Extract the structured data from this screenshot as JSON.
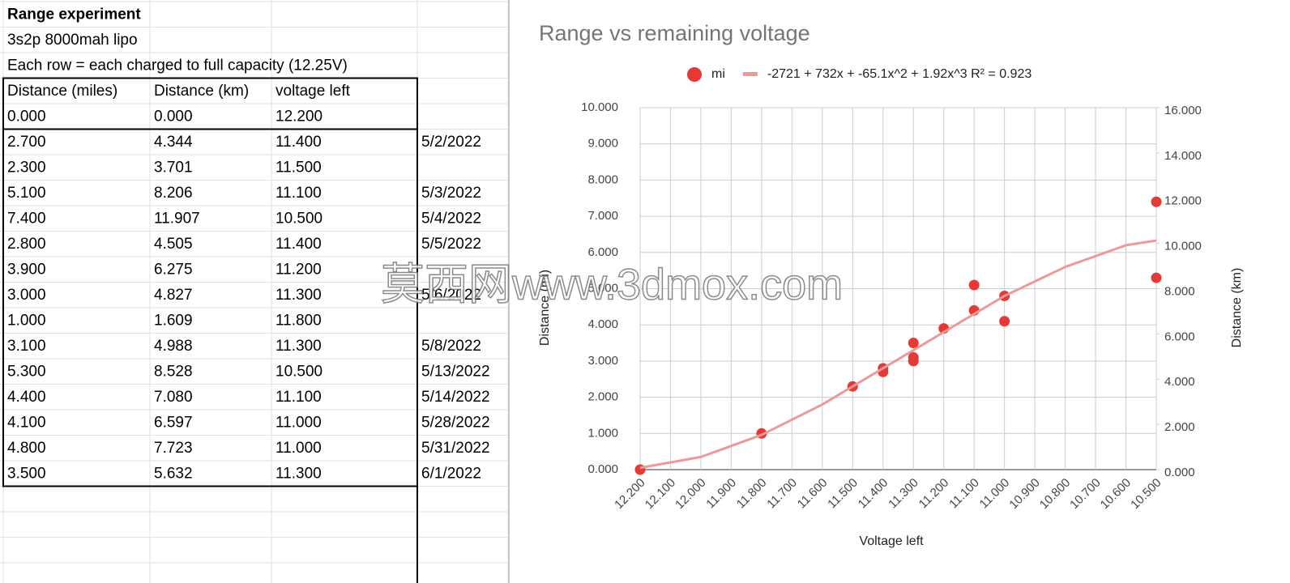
{
  "sheet": {
    "rows": [
      [
        "Range experiment"
      ],
      [
        "3s2p 8000mah lipo"
      ],
      [
        "Each row = each charged to full capacity (12.25V)"
      ],
      [
        "Distance (miles)",
        "Distance (km)",
        "voltage left"
      ],
      [
        "0.000",
        "0.000",
        "12.200"
      ],
      [
        "2.700",
        "4.344",
        "11.400",
        "5/2/2022"
      ],
      [
        "2.300",
        "3.701",
        "11.500"
      ],
      [
        "5.100",
        "8.206",
        "11.100",
        "5/3/2022"
      ],
      [
        "7.400",
        "11.907",
        "10.500",
        "5/4/2022"
      ],
      [
        "2.800",
        "4.505",
        "11.400",
        "5/5/2022"
      ],
      [
        "3.900",
        "6.275",
        "11.200"
      ],
      [
        "3.000",
        "4.827",
        "11.300",
        "5/6/2022"
      ],
      [
        "1.000",
        "1.609",
        "11.800"
      ],
      [
        "3.100",
        "4.988",
        "11.300",
        "5/8/2022"
      ],
      [
        "5.300",
        "8.528",
        "10.500",
        "5/13/2022"
      ],
      [
        "4.400",
        "7.080",
        "11.100",
        "5/14/2022"
      ],
      [
        "4.100",
        "6.597",
        "11.000",
        "5/28/2022"
      ],
      [
        "4.800",
        "7.723",
        "11.000",
        "5/31/2022"
      ],
      [
        "3.500",
        "5.632",
        "11.300",
        "6/1/2022"
      ]
    ]
  },
  "watermark": "莫西网www.3dmox.com",
  "chart_data": {
    "type": "scatter",
    "title": "Range vs remaining voltage",
    "x_label": "Voltage left",
    "y_label": "Distance (mi)",
    "y2_label": "Distance (km)",
    "x": [
      12.2,
      11.4,
      11.5,
      11.1,
      10.5,
      11.4,
      11.2,
      11.3,
      11.8,
      11.3,
      10.5,
      11.1,
      11.0,
      11.0,
      11.3
    ],
    "series": [
      {
        "name": "mi",
        "color": "#e53935",
        "values": [
          0,
          2.7,
          2.3,
          5.1,
          7.4,
          2.8,
          3.9,
          3.0,
          1.0,
          3.1,
          5.3,
          4.4,
          4.1,
          4.8,
          3.5
        ]
      },
      {
        "name": "-2721 + 732x + -65.1x^2 + 1.92x^3 R² = 0.923",
        "type": "trendline",
        "color": "#ec9a98",
        "x": [
          12.2,
          12.0,
          11.8,
          11.6,
          11.4,
          11.2,
          11.0,
          10.8,
          10.6,
          10.5
        ],
        "values": [
          0.05,
          0.35,
          0.96,
          1.8,
          2.8,
          3.8,
          4.8,
          5.6,
          6.2,
          6.33
        ]
      }
    ],
    "xlim": [
      12.2,
      10.5
    ],
    "xticks": [
      {
        "value": 12.2,
        "label": "12.200"
      },
      {
        "value": 12.1,
        "label": "12.100"
      },
      {
        "value": 12.0,
        "label": "12.000"
      },
      {
        "value": 11.9,
        "label": "11.900"
      },
      {
        "value": 11.8,
        "label": "11.800"
      },
      {
        "value": 11.7,
        "label": "11.700"
      },
      {
        "value": 11.6,
        "label": "11.600"
      },
      {
        "value": 11.5,
        "label": "11.500"
      },
      {
        "value": 11.4,
        "label": "11.400"
      },
      {
        "value": 11.3,
        "label": "11.300"
      },
      {
        "value": 11.2,
        "label": "11.200"
      },
      {
        "value": 11.1,
        "label": "11.100"
      },
      {
        "value": 11.0,
        "label": "11.000"
      },
      {
        "value": 10.9,
        "label": "10.900"
      },
      {
        "value": 10.8,
        "label": "10.800"
      },
      {
        "value": 10.7,
        "label": "10.700"
      },
      {
        "value": 10.6,
        "label": "10.600"
      },
      {
        "value": 10.5,
        "label": "10.500"
      }
    ],
    "ylim": [
      0,
      10
    ],
    "yticks": [
      {
        "value": 0,
        "label": "0.000"
      },
      {
        "value": 1,
        "label": "1.000"
      },
      {
        "value": 2,
        "label": "2.000"
      },
      {
        "value": 3,
        "label": "3.000"
      },
      {
        "value": 4,
        "label": "4.000"
      },
      {
        "value": 5,
        "label": "5.000"
      },
      {
        "value": 6,
        "label": "6.000"
      },
      {
        "value": 7,
        "label": "7.000"
      },
      {
        "value": 8,
        "label": "8.000"
      },
      {
        "value": 9,
        "label": "9.000"
      },
      {
        "value": 10,
        "label": "10.000"
      }
    ],
    "y2lim": [
      0,
      16
    ],
    "y2ticks": [
      {
        "value": 0,
        "label": "0.000"
      },
      {
        "value": 2,
        "label": "2.000"
      },
      {
        "value": 4,
        "label": "4.000"
      },
      {
        "value": 6,
        "label": "6.000"
      },
      {
        "value": 8,
        "label": "8.000"
      },
      {
        "value": 10,
        "label": "10.000"
      },
      {
        "value": 12,
        "label": "12.000"
      },
      {
        "value": 14,
        "label": "14.000"
      },
      {
        "value": 16,
        "label": "16.000"
      }
    ],
    "grid": true,
    "legend": "top"
  }
}
